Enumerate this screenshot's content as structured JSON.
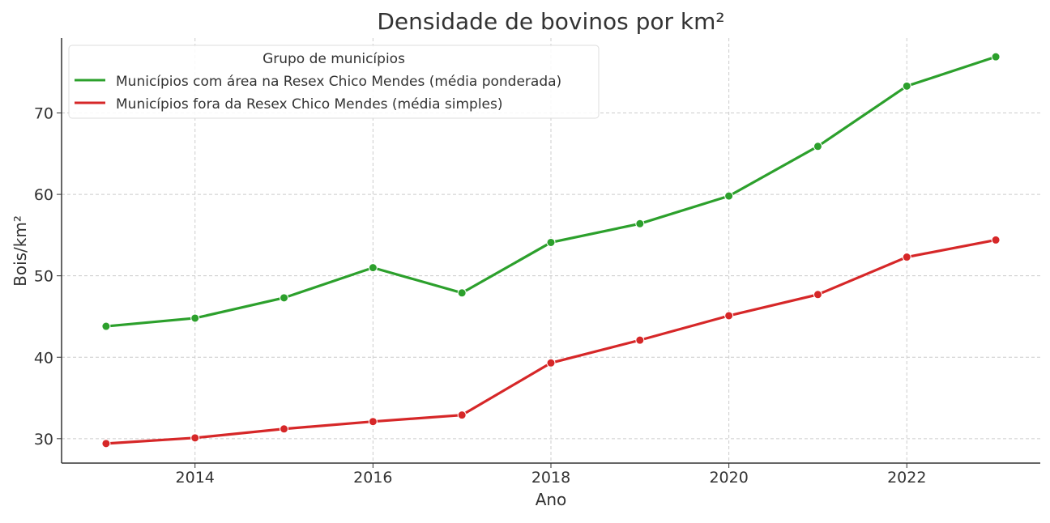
{
  "chart_data": {
    "type": "line",
    "title": "Densidade de bovinos por km²",
    "xlabel": "Ano",
    "ylabel": "Bois/km²",
    "xlim": [
      2012.5,
      2023.5
    ],
    "ylim": [
      27.0,
      79.2
    ],
    "xticks": [
      2014,
      2016,
      2018,
      2020,
      2022
    ],
    "yticks": [
      30,
      40,
      50,
      60,
      70
    ],
    "grid": true,
    "legend": {
      "title": "Grupo de municípios",
      "placement": "top-left"
    },
    "x": [
      2013,
      2014,
      2015,
      2016,
      2017,
      2018,
      2019,
      2020,
      2021,
      2022,
      2023
    ],
    "series": [
      {
        "name": "Municípios com área na Resex Chico Mendes (média ponderada)",
        "color": "#2ca02c",
        "values": [
          43.8,
          44.8,
          47.3,
          51.0,
          47.9,
          54.1,
          56.4,
          59.8,
          65.9,
          73.3,
          76.9
        ]
      },
      {
        "name": "Municípios fora da Resex Chico Mendes (média simples)",
        "color": "#d62728",
        "values": [
          29.4,
          30.1,
          31.2,
          32.1,
          32.9,
          39.3,
          42.1,
          45.1,
          47.7,
          52.3,
          54.4
        ]
      }
    ]
  }
}
